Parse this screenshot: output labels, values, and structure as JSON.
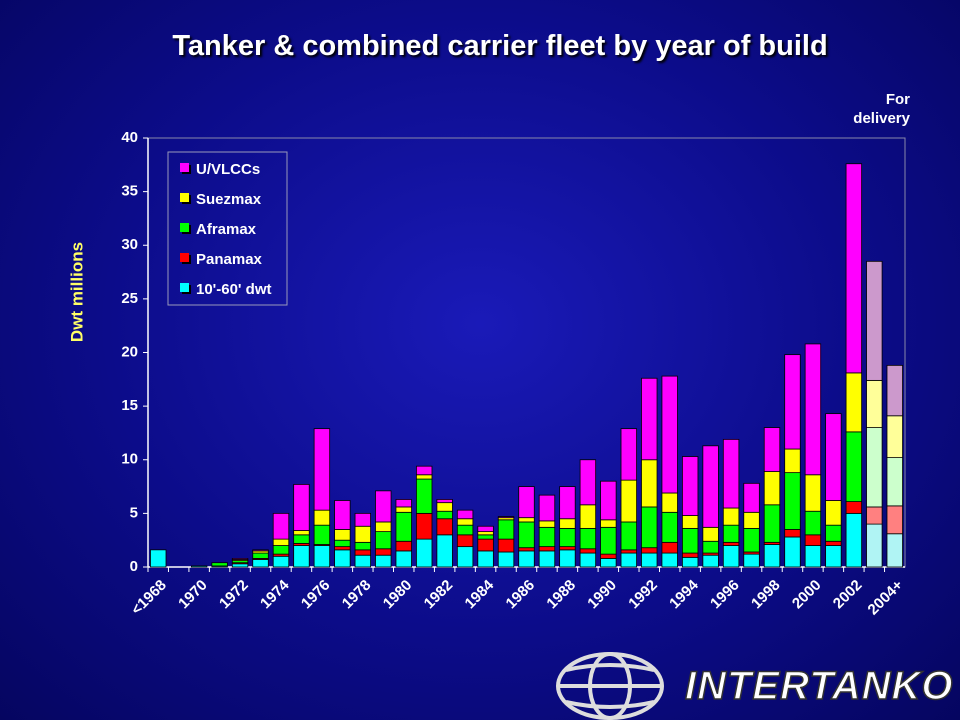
{
  "chart_data": {
    "type": "stacked_bar",
    "title": "Tanker & combined carrier fleet by year of build",
    "ylabel": "Dwt   millions",
    "annotation": "For delivery",
    "logo": "INTERTANKO",
    "categories": [
      "<1968",
      null,
      "1970",
      null,
      "1972",
      null,
      "1974",
      null,
      "1976",
      null,
      "1978",
      null,
      "1980",
      null,
      "1982",
      null,
      "1984",
      null,
      "1986",
      null,
      "1988",
      null,
      "1990",
      null,
      "1992",
      null,
      "1994",
      null,
      "1996",
      null,
      "1998",
      null,
      "2000",
      null,
      "2002",
      null,
      "2004+"
    ],
    "ylim": [
      0,
      40
    ],
    "yticks": [
      0,
      5,
      10,
      15,
      20,
      25,
      30,
      35,
      40
    ],
    "grid": false,
    "legend": "upper left",
    "series": [
      {
        "name": "10'-60' dwt",
        "color": "#00ffff",
        "light_color": "#b0f4f4",
        "values": [
          1.6,
          0,
          0.1,
          0.1,
          0.3,
          0.7,
          1.0,
          2.0,
          2.0,
          1.6,
          1.1,
          1.1,
          1.5,
          2.6,
          3.0,
          1.9,
          1.5,
          1.4,
          1.5,
          1.5,
          1.6,
          1.3,
          0.8,
          1.3,
          1.3,
          1.3,
          0.9,
          1.1,
          2.0,
          1.2,
          2.1,
          2.8,
          2.0,
          2.0,
          5.0,
          4.0,
          3.1
        ]
      },
      {
        "name": "Panamax",
        "color": "#ff0000",
        "light_color": "#ff8080",
        "values": [
          0,
          0,
          0,
          0,
          0.1,
          0.1,
          0.2,
          0.2,
          0.1,
          0.3,
          0.5,
          0.6,
          0.9,
          2.4,
          1.5,
          1.1,
          1.1,
          1.2,
          0.3,
          0.4,
          0.3,
          0.4,
          0.4,
          0.3,
          0.5,
          1.0,
          0.4,
          0.2,
          0.3,
          0.2,
          0.2,
          0.7,
          1.0,
          0.4,
          1.1,
          1.6,
          2.6
        ]
      },
      {
        "name": "Aframax",
        "color": "#00ff00",
        "light_color": "#ccffcc",
        "values": [
          0,
          0,
          0,
          0.3,
          0.2,
          0.5,
          0.8,
          0.8,
          1.8,
          0.6,
          0.7,
          1.6,
          2.7,
          3.2,
          0.7,
          0.9,
          0.4,
          1.8,
          2.4,
          1.8,
          1.7,
          1.9,
          2.5,
          2.6,
          3.8,
          2.8,
          2.3,
          1.1,
          1.6,
          2.2,
          3.5,
          5.3,
          2.2,
          1.5,
          6.5,
          7.4,
          4.5
        ]
      },
      {
        "name": "Suezmax",
        "color": "#ffff00",
        "light_color": "#ffff99",
        "values": [
          0,
          0,
          0,
          0,
          0.1,
          0.2,
          0.6,
          0.4,
          1.4,
          1.0,
          1.5,
          0.9,
          0.5,
          0.4,
          0.8,
          0.6,
          0.3,
          0.2,
          0.4,
          0.6,
          0.9,
          2.2,
          0.7,
          3.9,
          4.4,
          1.8,
          1.2,
          1.3,
          1.6,
          1.5,
          3.1,
          2.2,
          3.4,
          2.3,
          5.5,
          4.4,
          3.9
        ]
      },
      {
        "name": "U/VLCCs",
        "color": "#ff00ff",
        "light_color": "#cc99cc",
        "values": [
          0,
          0,
          0,
          0,
          0.1,
          0.1,
          2.4,
          4.3,
          7.6,
          2.7,
          1.2,
          2.9,
          0.7,
          0.8,
          0.3,
          0.8,
          0.5,
          0.1,
          2.9,
          2.4,
          3.0,
          4.2,
          3.6,
          4.8,
          7.6,
          10.9,
          5.5,
          7.6,
          6.4,
          2.7,
          4.1,
          8.8,
          12.2,
          8.1,
          19.5,
          11.1,
          4.7
        ]
      }
    ]
  }
}
